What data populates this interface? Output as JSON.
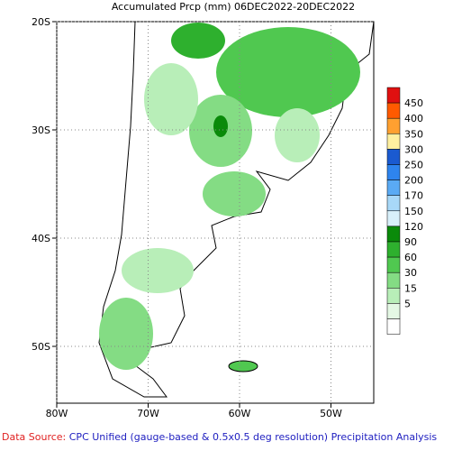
{
  "title": "Accumulated Prcp (mm) 06DEC2022-20DEC2022",
  "lat_labels": [
    "20S",
    "30S",
    "40S",
    "50S"
  ],
  "lon_labels": [
    "80W",
    "70W",
    "60W",
    "50W"
  ],
  "legend": {
    "labels": [
      "450",
      "400",
      "350",
      "300",
      "250",
      "200",
      "170",
      "150",
      "120",
      "90",
      "60",
      "30",
      "15",
      "5"
    ],
    "colors": [
      "#e01010",
      "#ff5a00",
      "#ffa030",
      "#fff0a0",
      "#1a5ad0",
      "#2e84ee",
      "#5aaaf4",
      "#a8d8f8",
      "#d8f0fa",
      "#0a8a0a",
      "#2eb02e",
      "#50c850",
      "#84dc84",
      "#b8eeb8",
      "#e4f8e4",
      "#ffffff"
    ]
  },
  "footer": {
    "source_label": "Data Source:",
    "source_text": "CPC Unified (gauge-based & 0.5x0.5 deg resolution) Precipitation Analysis"
  }
}
